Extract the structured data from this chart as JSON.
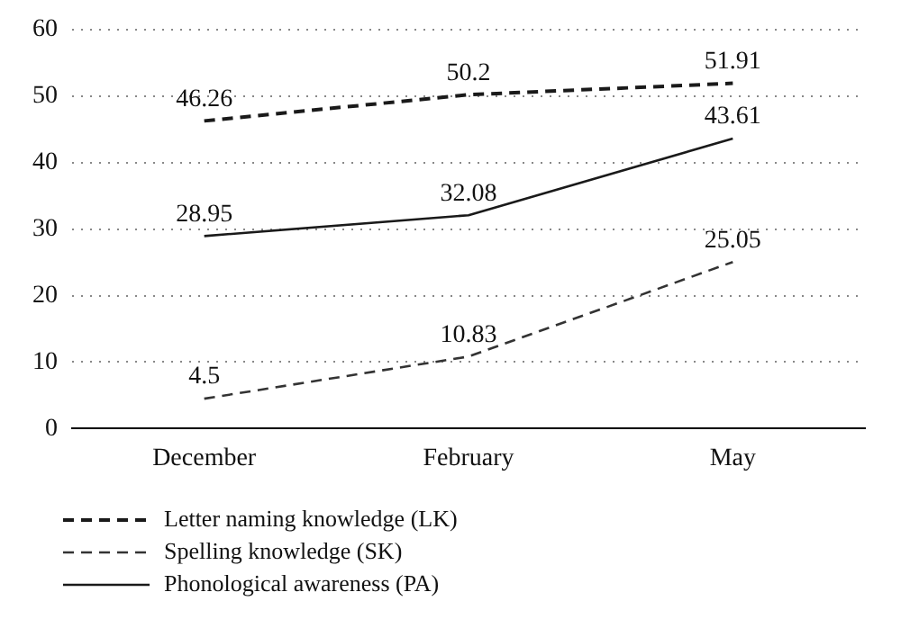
{
  "chart_data": {
    "type": "line",
    "categories": [
      "December",
      "February",
      "May"
    ],
    "series": [
      {
        "name": "Letter naming knowledge (LK)",
        "color": "#1a1a1a",
        "values": [
          46.26,
          50.2,
          51.91
        ],
        "line_style": "dashed"
      },
      {
        "name": "Spelling knowledge (SK)",
        "color": "#333333",
        "values": [
          4.5,
          10.83,
          25.05
        ],
        "line_style": "dashed"
      },
      {
        "name": "Phonological awareness (PA)",
        "color": "#1a1a1a",
        "values": [
          28.95,
          32.08,
          43.61
        ],
        "line_style": "solid"
      }
    ],
    "ylim": [
      0,
      60
    ],
    "yticks": [
      0,
      10,
      20,
      30,
      40,
      50,
      60
    ],
    "grid": "y",
    "legend": "bottom left",
    "marker": "none",
    "data_labels": true
  }
}
